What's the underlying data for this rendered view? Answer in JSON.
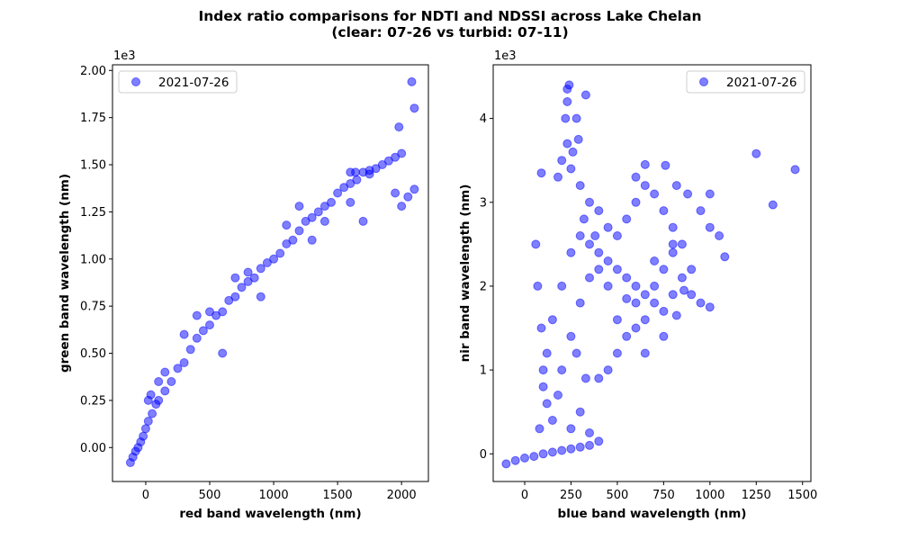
{
  "figure": {
    "title_line1": "Index ratio comparisons for NDTI and NDSSI across Lake Chelan",
    "title_line2": "(clear: 07-26 vs turbid: 07-11)"
  },
  "colors": {
    "marker": "#0000ff",
    "axes": "#000000",
    "background": "#ffffff"
  },
  "chart_data": [
    {
      "type": "scatter",
      "xlabel": "red band wavelength (nm)",
      "ylabel": "green band wavelength (nm)",
      "y_offset_text": "1e3",
      "xlim": [
        -260,
        2210
      ],
      "ylim": [
        -180,
        2030
      ],
      "xticks": [
        0,
        500,
        1000,
        1500,
        2000
      ],
      "xtick_labels": [
        "0",
        "500",
        "1000",
        "1500",
        "2000"
      ],
      "yticks": [
        0,
        250,
        500,
        750,
        1000,
        1250,
        1500,
        1750,
        2000
      ],
      "ytick_labels": [
        "0.00",
        "0.25",
        "0.50",
        "0.75",
        "1.00",
        "1.25",
        "1.50",
        "1.75",
        "2.00"
      ],
      "legend": {
        "location": "upper left",
        "entries": [
          "2021-07-26"
        ]
      },
      "series": [
        {
          "name": "2021-07-26",
          "color": "#0000ff",
          "alpha": 0.5,
          "points": [
            [
              -120,
              -80
            ],
            [
              -100,
              -50
            ],
            [
              -60,
              0
            ],
            [
              -20,
              60
            ],
            [
              0,
              100
            ],
            [
              20,
              140
            ],
            [
              50,
              180
            ],
            [
              80,
              230
            ],
            [
              100,
              250
            ],
            [
              150,
              300
            ],
            [
              200,
              350
            ],
            [
              250,
              420
            ],
            [
              300,
              450
            ],
            [
              350,
              520
            ],
            [
              400,
              580
            ],
            [
              450,
              620
            ],
            [
              500,
              650
            ],
            [
              550,
              700
            ],
            [
              600,
              720
            ],
            [
              650,
              780
            ],
            [
              700,
              800
            ],
            [
              750,
              850
            ],
            [
              800,
              880
            ],
            [
              850,
              900
            ],
            [
              900,
              950
            ],
            [
              950,
              980
            ],
            [
              1000,
              1000
            ],
            [
              1050,
              1030
            ],
            [
              1100,
              1080
            ],
            [
              1150,
              1100
            ],
            [
              1200,
              1150
            ],
            [
              1250,
              1200
            ],
            [
              1300,
              1220
            ],
            [
              1350,
              1250
            ],
            [
              1400,
              1280
            ],
            [
              1450,
              1300
            ],
            [
              1500,
              1350
            ],
            [
              1550,
              1380
            ],
            [
              1600,
              1400
            ],
            [
              1650,
              1420
            ],
            [
              1700,
              1460
            ],
            [
              1750,
              1450
            ],
            [
              1800,
              1480
            ],
            [
              1850,
              1500
            ],
            [
              1900,
              1520
            ],
            [
              1950,
              1540
            ],
            [
              2000,
              1560
            ],
            [
              1980,
              1700
            ],
            [
              2080,
              1940
            ],
            [
              2100,
              1800
            ],
            [
              2100,
              1370
            ],
            [
              2050,
              1330
            ],
            [
              2000,
              1280
            ],
            [
              1950,
              1350
            ],
            [
              1700,
              1200
            ],
            [
              1600,
              1300
            ],
            [
              1600,
              1460
            ],
            [
              1640,
              1460
            ],
            [
              1750,
              1470
            ],
            [
              300,
              600
            ],
            [
              400,
              700
            ],
            [
              500,
              720
            ],
            [
              700,
              900
            ],
            [
              800,
              930
            ],
            [
              600,
              500
            ],
            [
              900,
              800
            ],
            [
              1300,
              1100
            ],
            [
              1400,
              1200
            ],
            [
              1200,
              1280
            ],
            [
              1100,
              1180
            ],
            [
              40,
              280
            ],
            [
              20,
              250
            ],
            [
              150,
              400
            ],
            [
              100,
              350
            ],
            [
              -80,
              -20
            ],
            [
              -40,
              30
            ]
          ]
        }
      ]
    },
    {
      "type": "scatter",
      "xlabel": "blue band wavelength (nm)",
      "ylabel": "nir band wavelength (nm)",
      "y_offset_text": "1e3",
      "xlim": [
        -170,
        1545
      ],
      "ylim": [
        -330,
        4640
      ],
      "xticks": [
        0,
        250,
        500,
        750,
        1000,
        1250,
        1500
      ],
      "xtick_labels": [
        "0",
        "250",
        "500",
        "750",
        "1000",
        "1250",
        "1500"
      ],
      "yticks": [
        0,
        1000,
        2000,
        3000,
        4000
      ],
      "ytick_labels": [
        "0",
        "1",
        "2",
        "3",
        "4"
      ],
      "legend": {
        "location": "upper right",
        "entries": [
          "2021-07-26"
        ]
      },
      "series": [
        {
          "name": "2021-07-26",
          "color": "#0000ff",
          "alpha": 0.5,
          "points": [
            [
              -100,
              -120
            ],
            [
              -50,
              -80
            ],
            [
              0,
              -50
            ],
            [
              50,
              -30
            ],
            [
              100,
              0
            ],
            [
              150,
              20
            ],
            [
              200,
              40
            ],
            [
              250,
              60
            ],
            [
              300,
              80
            ],
            [
              350,
              100
            ],
            [
              80,
              300
            ],
            [
              100,
              800
            ],
            [
              120,
              1200
            ],
            [
              150,
              1600
            ],
            [
              200,
              2000
            ],
            [
              250,
              2400
            ],
            [
              300,
              2600
            ],
            [
              350,
              2500
            ],
            [
              400,
              2400
            ],
            [
              450,
              2300
            ],
            [
              500,
              2200
            ],
            [
              550,
              2100
            ],
            [
              600,
              2000
            ],
            [
              650,
              1900
            ],
            [
              700,
              1800
            ],
            [
              750,
              1700
            ],
            [
              800,
              1900
            ],
            [
              850,
              2100
            ],
            [
              900,
              2200
            ],
            [
              850,
              2500
            ],
            [
              800,
              2700
            ],
            [
              750,
              2900
            ],
            [
              700,
              3100
            ],
            [
              650,
              3200
            ],
            [
              600,
              3000
            ],
            [
              550,
              2800
            ],
            [
              500,
              2600
            ],
            [
              450,
              2700
            ],
            [
              400,
              2900
            ],
            [
              350,
              3000
            ],
            [
              300,
              3200
            ],
            [
              250,
              3400
            ],
            [
              230,
              3700
            ],
            [
              220,
              4000
            ],
            [
              230,
              4200
            ],
            [
              240,
              4400
            ],
            [
              230,
              4350
            ],
            [
              330,
              4280
            ],
            [
              280,
              4000
            ],
            [
              290,
              3750
            ],
            [
              260,
              3600
            ],
            [
              200,
              3500
            ],
            [
              180,
              3300
            ],
            [
              90,
              3350
            ],
            [
              60,
              2500
            ],
            [
              70,
              2000
            ],
            [
              90,
              1500
            ],
            [
              100,
              1000
            ],
            [
              120,
              600
            ],
            [
              400,
              900
            ],
            [
              450,
              1000
            ],
            [
              500,
              1200
            ],
            [
              550,
              1400
            ],
            [
              600,
              1500
            ],
            [
              650,
              1600
            ],
            [
              700,
              2000
            ],
            [
              750,
              2200
            ],
            [
              800,
              2400
            ],
            [
              1000,
              1750
            ],
            [
              1000,
              2700
            ],
            [
              1050,
              2600
            ],
            [
              1080,
              2350
            ],
            [
              1000,
              3100
            ],
            [
              950,
              2900
            ],
            [
              1250,
              3580
            ],
            [
              1340,
              2970
            ],
            [
              1460,
              3390
            ],
            [
              600,
              3300
            ],
            [
              650,
              3450
            ],
            [
              760,
              3440
            ],
            [
              820,
              3200
            ],
            [
              880,
              3100
            ],
            [
              900,
              1900
            ],
            [
              950,
              1800
            ],
            [
              400,
              2200
            ],
            [
              350,
              2100
            ],
            [
              300,
              1800
            ],
            [
              250,
              1400
            ],
            [
              200,
              1000
            ],
            [
              180,
              700
            ],
            [
              150,
              400
            ],
            [
              500,
              1600
            ],
            [
              600,
              1800
            ],
            [
              700,
              2300
            ],
            [
              800,
              2500
            ],
            [
              650,
              1200
            ],
            [
              750,
              1400
            ],
            [
              820,
              1650
            ],
            [
              860,
              1950
            ],
            [
              550,
              1850
            ],
            [
              450,
              2000
            ],
            [
              380,
              2600
            ],
            [
              320,
              2800
            ],
            [
              280,
              1200
            ],
            [
              330,
              900
            ],
            [
              300,
              500
            ],
            [
              250,
              300
            ],
            [
              350,
              250
            ],
            [
              400,
              150
            ]
          ]
        }
      ]
    }
  ]
}
